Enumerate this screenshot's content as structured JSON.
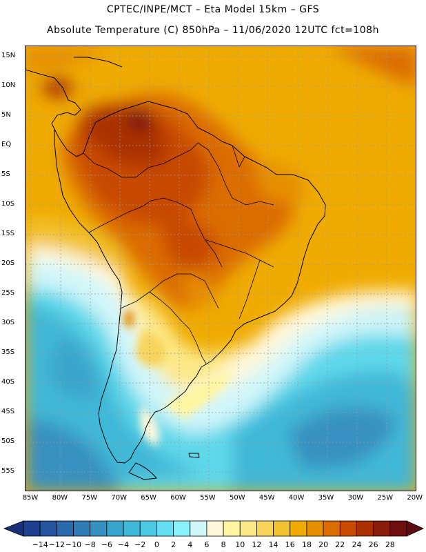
{
  "header": {
    "title_line1": "CPTEC/INPE/MCT –  Eta Model 15km – GFS",
    "title_line2": "Absolute Temperature (C) 850hPa – 11/06/2020 12UTC fct=108h"
  },
  "map": {
    "region": "South America",
    "variable": "Absolute Temperature (C) 850hPa",
    "lat_labels": [
      "15N",
      "10N",
      "5N",
      "EQ",
      "5S",
      "10S",
      "15S",
      "20S",
      "25S",
      "30S",
      "35S",
      "40S",
      "45S",
      "50S",
      "55S"
    ],
    "lon_labels": [
      "85W",
      "80W",
      "75W",
      "70W",
      "65W",
      "60W",
      "55W",
      "50W",
      "45W",
      "40W",
      "35W",
      "30W",
      "25W",
      "20W"
    ],
    "lat_range_deg": [
      -58,
      17
    ],
    "lon_range_deg": [
      -86,
      -20
    ]
  },
  "colorbar": {
    "labels": [
      "-14",
      "-12",
      "-10",
      "-8",
      "-6",
      "-4",
      "-2",
      "0",
      "2",
      "4",
      "6",
      "8",
      "10",
      "12",
      "14",
      "16",
      "18",
      "20",
      "22",
      "24",
      "26",
      "28"
    ],
    "colors": [
      "#1f3f8f",
      "#24559e",
      "#2a69aa",
      "#307db5",
      "#3791c0",
      "#3aa5cc",
      "#40b8d8",
      "#4ccae4",
      "#64def0",
      "#8bf2fa",
      "#d0f6fa",
      "#fff8dc",
      "#fff5a0",
      "#fde988",
      "#f8d45a",
      "#f2c230",
      "#efab00",
      "#e68f00",
      "#db6c00",
      "#c74a00",
      "#aa3000",
      "#8a1c0a",
      "#6e1010"
    ],
    "under_color": "#1a2f7a",
    "over_color": "#5c0c10"
  }
}
